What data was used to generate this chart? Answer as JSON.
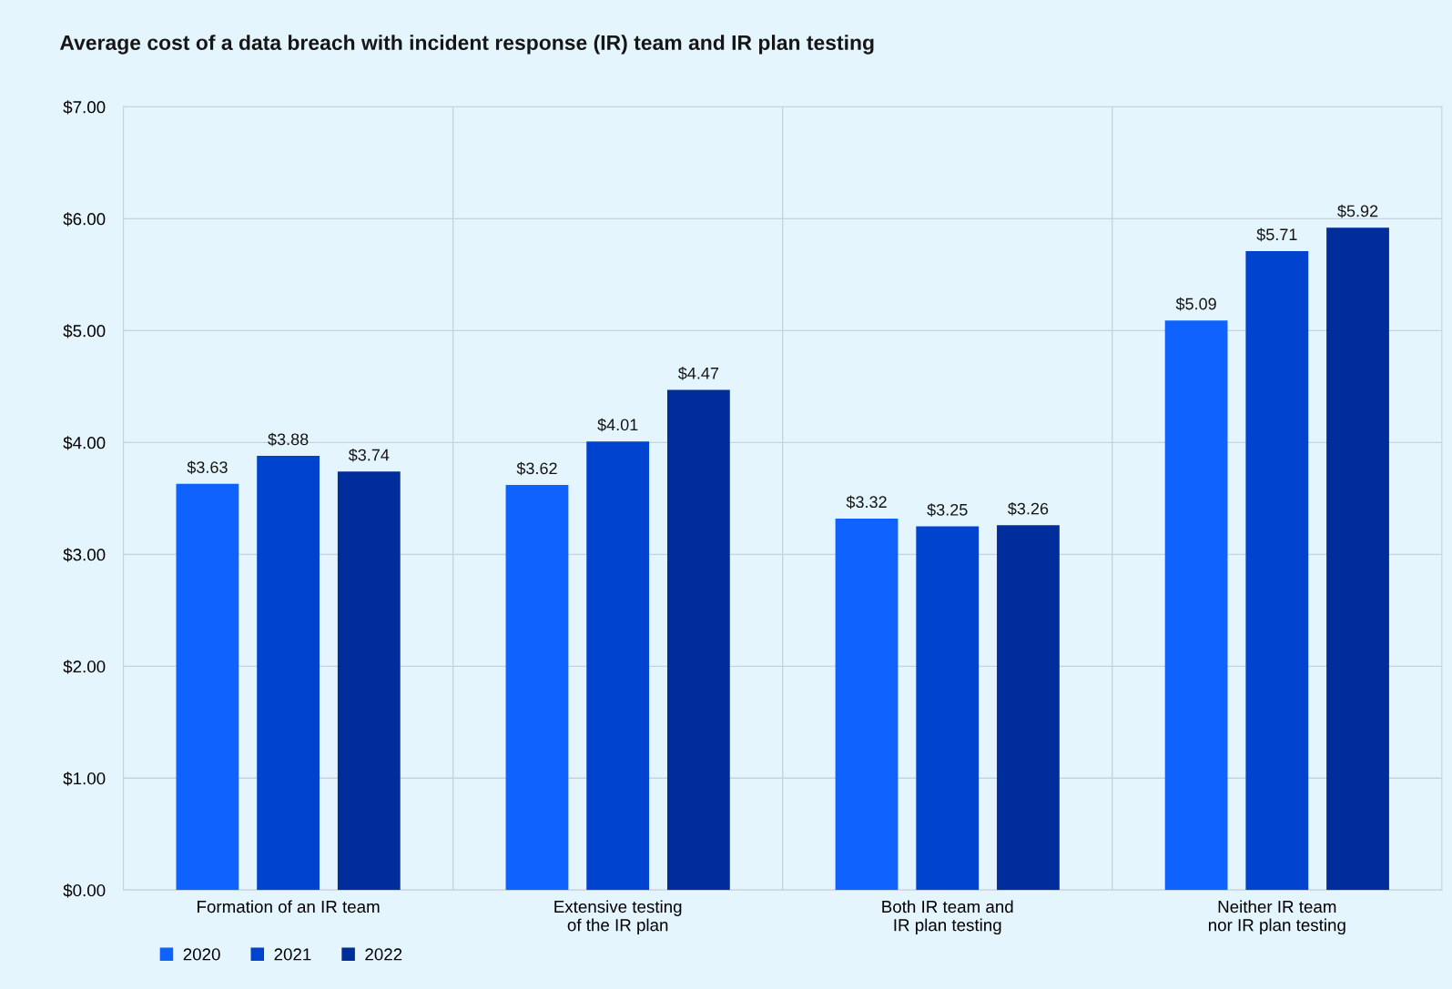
{
  "chart_data": {
    "type": "bar",
    "title": "Average cost of a data breach with incident response (IR) team and IR plan testing",
    "categories": [
      "Formation of an IR team",
      "Extensive testing\nof the IR plan",
      "Both IR team and\nIR plan testing",
      "Neither IR team\nnor IR plan testing"
    ],
    "series": [
      {
        "name": "2020",
        "color": "#0f62fe",
        "values": [
          3.63,
          3.62,
          3.32,
          5.09
        ]
      },
      {
        "name": "2021",
        "color": "#0043ce",
        "values": [
          3.88,
          4.01,
          3.25,
          5.71
        ]
      },
      {
        "name": "2022",
        "color": "#002d9c",
        "values": [
          3.74,
          4.47,
          3.26,
          5.92
        ]
      }
    ],
    "ylim": [
      0,
      7
    ],
    "yticks": [
      {
        "value": 0,
        "label": "$0.00"
      },
      {
        "value": 1,
        "label": "$1.00"
      },
      {
        "value": 2,
        "label": "$2.00"
      },
      {
        "value": 3,
        "label": "$3.00"
      },
      {
        "value": 4,
        "label": "$4.00"
      },
      {
        "value": 5,
        "label": "$5.00"
      },
      {
        "value": 6,
        "label": "$6.00"
      },
      {
        "value": 7,
        "label": "$7.00"
      }
    ],
    "value_labels": [
      [
        "$3.63",
        "$3.62",
        "$3.32",
        "$5.09"
      ],
      [
        "$3.88",
        "$4.01",
        "$3.25",
        "$5.71"
      ],
      [
        "$3.74",
        "$4.47",
        "$3.26",
        "$5.92"
      ]
    ],
    "grid": true,
    "legend": "bottom left"
  }
}
